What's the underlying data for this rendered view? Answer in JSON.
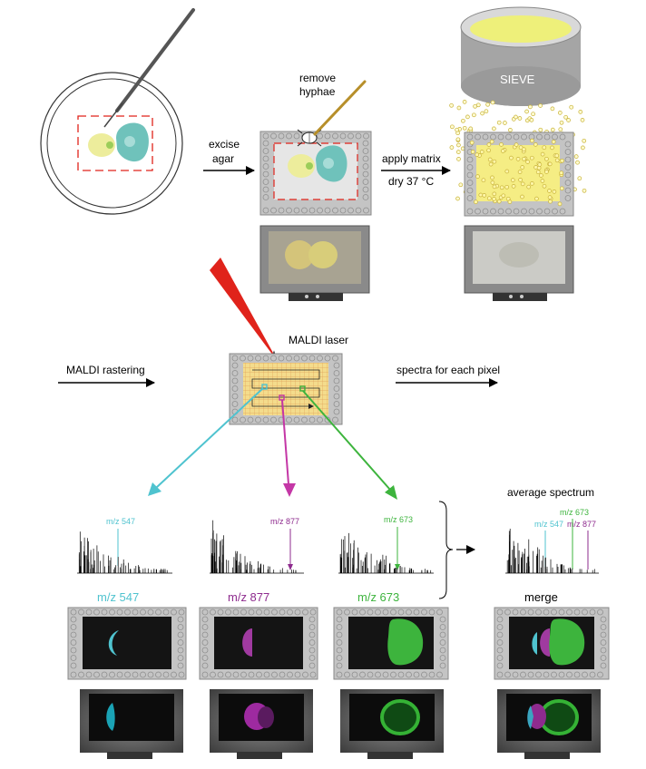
{
  "steps": {
    "excise": [
      "excise",
      "agar"
    ],
    "remove_hyphae": [
      "remove",
      "hyphae"
    ],
    "apply_matrix": "apply matrix",
    "dry": "dry 37 °C",
    "sieve": "SIEVE",
    "maldi_laser": "MALDI laser",
    "maldi_rastering": "MALDI rastering",
    "spectra_each_pixel": "spectra for each pixel",
    "average_spectrum": "average spectrum",
    "merge": "merge"
  },
  "ions": [
    {
      "mz": "m/z 547",
      "color": "#4fc3cf"
    },
    {
      "mz": "m/z 877",
      "color": "#8e2b8e"
    },
    {
      "mz": "m/z 673",
      "color": "#3db43d"
    }
  ],
  "colors": {
    "cyan": "#4fc3cf",
    "magenta": "#c437a6",
    "green": "#3db43d",
    "laser_red": "#e0231b",
    "matrix_yellow": "#f7ea6a",
    "plate_gray": "#bfbfbf",
    "sieve_gray": "#a9a9a9"
  }
}
